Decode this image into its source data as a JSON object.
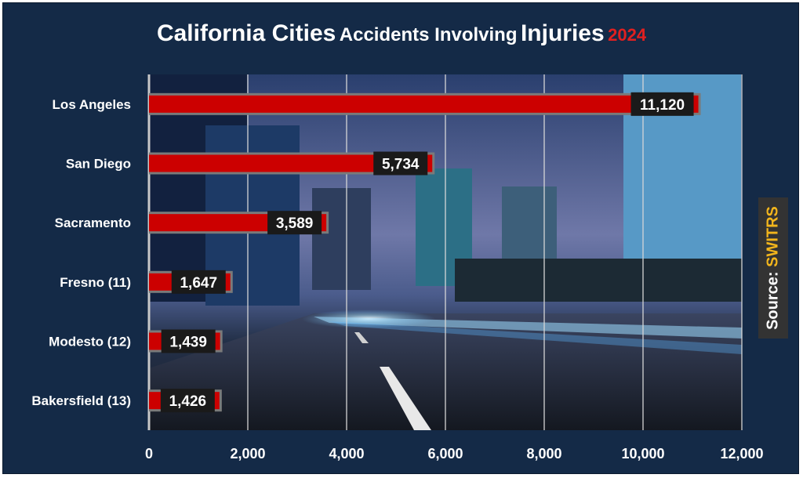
{
  "title": {
    "part1": "California Cities",
    "part2": "Accidents Involving",
    "part3": "Injuries",
    "year": "2024",
    "year_color": "#e02020"
  },
  "source": {
    "label": "Source:",
    "value": "SWITRS",
    "value_color": "#f2b51c"
  },
  "colors": {
    "background": "#142a47",
    "bar": "#cc0000",
    "bar_shadow": "#7a7a7a",
    "label_box": "#1a1a1a",
    "text": "#ffffff"
  },
  "chart_data": {
    "type": "bar",
    "orientation": "horizontal",
    "categories": [
      "Los Angeles",
      "San Diego",
      "Sacramento",
      "Fresno (11)",
      "Modesto (12)",
      "Bakersfield (13)"
    ],
    "values": [
      11120,
      5734,
      3589,
      1647,
      1439,
      1426
    ],
    "data_labels": [
      "11,120",
      "5,734",
      "3,589",
      "1,647",
      "1,439",
      "1,426"
    ],
    "xlim": [
      0,
      12000
    ],
    "x_ticks": [
      0,
      2000,
      4000,
      6000,
      8000,
      10000,
      12000
    ],
    "x_tick_labels": [
      "0",
      "2,000",
      "4,000",
      "6,000",
      "8,000",
      "10,000",
      "12,000"
    ],
    "grid": true,
    "background_image": "city-night-street-photo"
  }
}
